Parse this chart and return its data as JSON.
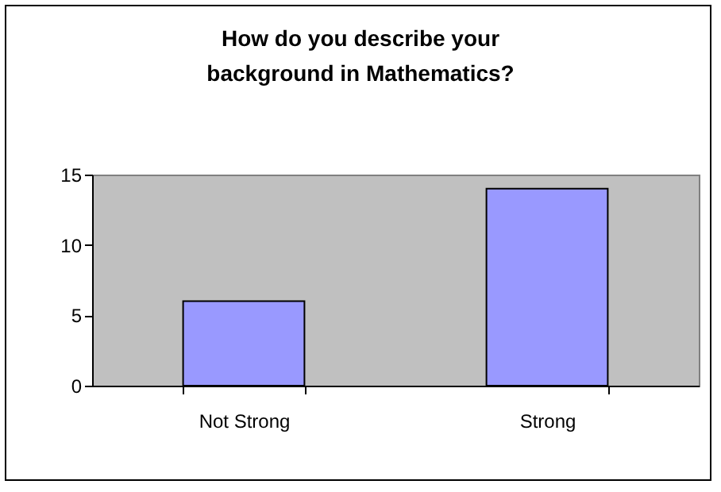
{
  "chart_data": {
    "type": "bar",
    "title": "How do you describe your\nbackground in Mathematics?",
    "categories": [
      "Not Strong",
      "Strong"
    ],
    "values": [
      6,
      14
    ],
    "color": "#9999ff",
    "ylim": [
      0,
      15
    ],
    "yticks": [
      0,
      5,
      10,
      15
    ],
    "grid": false
  }
}
